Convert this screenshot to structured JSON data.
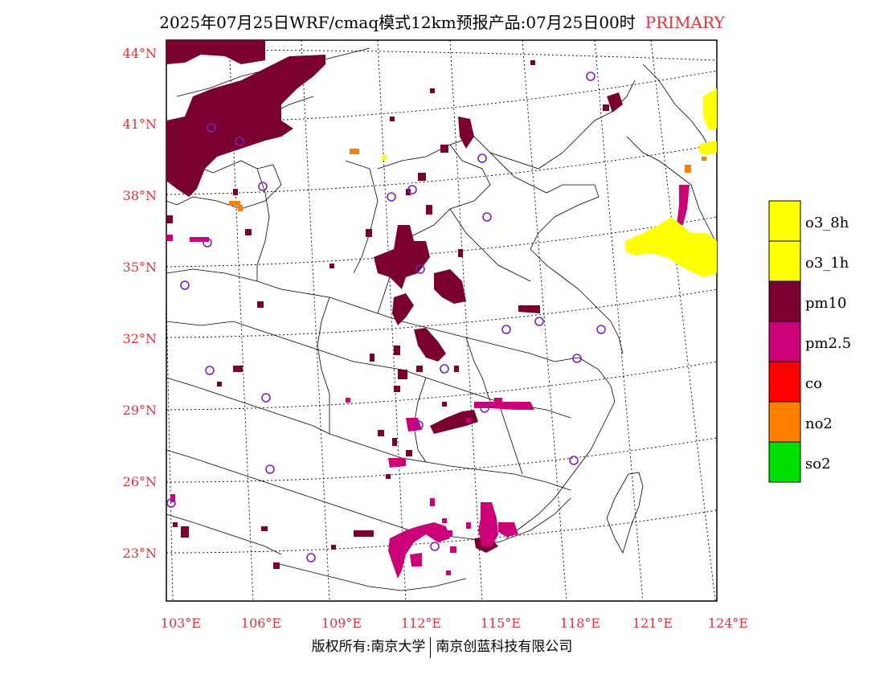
{
  "title": {
    "main": "2025年07月25日WRF/cmaq模式12km预报产品:07月25日00时",
    "primary": "PRIMARY"
  },
  "lat_labels": [
    "44°N",
    "41°N",
    "38°N",
    "35°N",
    "32°N",
    "29°N",
    "26°N",
    "23°N"
  ],
  "lon_labels": [
    "103°E",
    "106°E",
    "109°E",
    "112°E",
    "115°E",
    "118°E",
    "121°E",
    "124°E"
  ],
  "legend": [
    {
      "label": "o3_8h",
      "color": "#ffff00"
    },
    {
      "label": "o3_1h",
      "color": "#ffff00"
    },
    {
      "label": "pm10",
      "color": "#7a0030"
    },
    {
      "label": "pm2.5",
      "color": "#cc0077"
    },
    {
      "label": "co",
      "color": "#ff0000"
    },
    {
      "label": "no2",
      "color": "#ff8000"
    },
    {
      "label": "so2",
      "color": "#00e000"
    }
  ],
  "copyright": {
    "left": "版权所有:南京大学",
    "right": "南京创蓝科技有限公司"
  }
}
